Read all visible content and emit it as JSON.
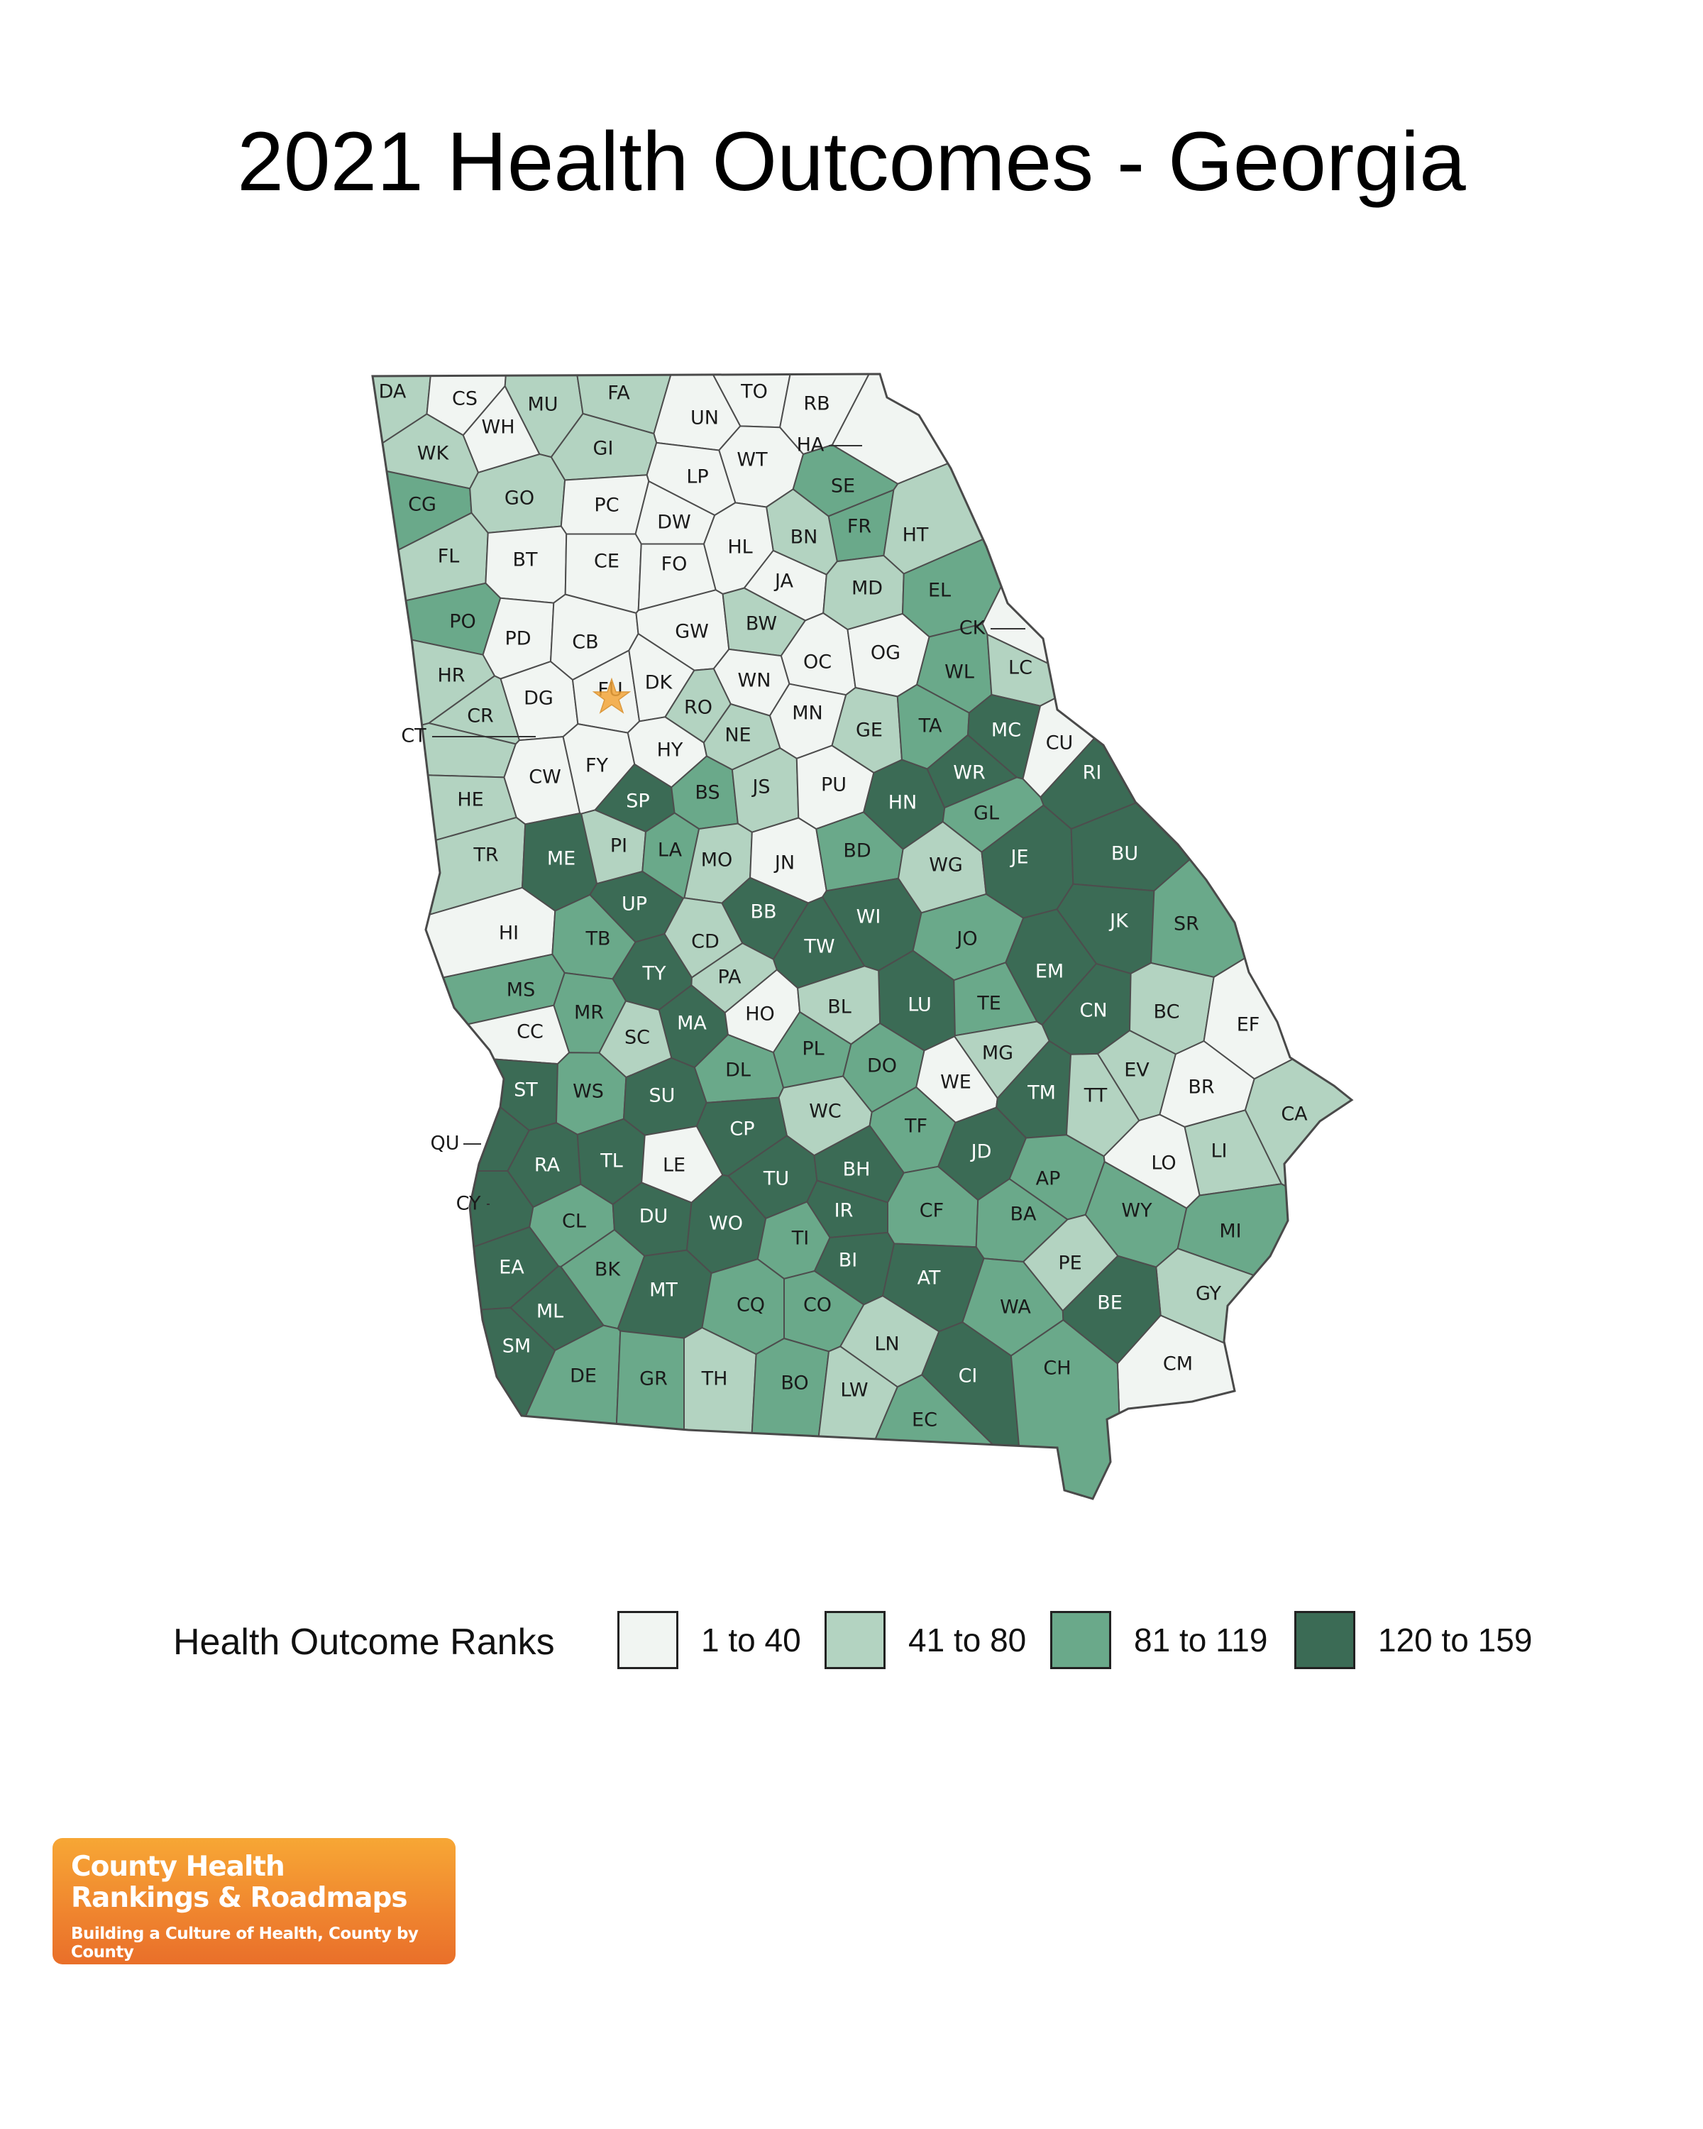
{
  "title": "2021 Health Outcomes - Georgia",
  "legend": {
    "title": "Health Outcome Ranks",
    "bins": [
      {
        "label": "1 to 40",
        "color": "#f1f5f2"
      },
      {
        "label": "41 to 80",
        "color": "#b3d3c1"
      },
      {
        "label": "81 to 119",
        "color": "#6aa98a"
      },
      {
        "label": "120 to 159",
        "color": "#3b6b55"
      }
    ]
  },
  "logo": {
    "line1": "County Health",
    "line2": "Rankings & Roadmaps",
    "tagline": "Building a Culture of Health, County by County"
  },
  "map": {
    "state": "Georgia",
    "highlight_marker": "FU",
    "counties": [
      {
        "abbr": "DA",
        "bin": 2
      },
      {
        "abbr": "CS",
        "bin": 1
      },
      {
        "abbr": "WH",
        "bin": 1
      },
      {
        "abbr": "MU",
        "bin": 2
      },
      {
        "abbr": "FA",
        "bin": 2
      },
      {
        "abbr": "UN",
        "bin": 1
      },
      {
        "abbr": "TO",
        "bin": 1
      },
      {
        "abbr": "RB",
        "bin": 1
      },
      {
        "abbr": "WK",
        "bin": 2
      },
      {
        "abbr": "GI",
        "bin": 2
      },
      {
        "abbr": "HA",
        "bin": 1
      },
      {
        "abbr": "WT",
        "bin": 1
      },
      {
        "abbr": "LP",
        "bin": 1
      },
      {
        "abbr": "SE",
        "bin": 3
      },
      {
        "abbr": "CG",
        "bin": 3
      },
      {
        "abbr": "GO",
        "bin": 2
      },
      {
        "abbr": "PC",
        "bin": 1
      },
      {
        "abbr": "DW",
        "bin": 1
      },
      {
        "abbr": "FR",
        "bin": 3
      },
      {
        "abbr": "HT",
        "bin": 2
      },
      {
        "abbr": "BN",
        "bin": 2
      },
      {
        "abbr": "FL",
        "bin": 2
      },
      {
        "abbr": "BT",
        "bin": 1
      },
      {
        "abbr": "CE",
        "bin": 1
      },
      {
        "abbr": "FO",
        "bin": 1
      },
      {
        "abbr": "HL",
        "bin": 1
      },
      {
        "abbr": "JA",
        "bin": 1
      },
      {
        "abbr": "MD",
        "bin": 2
      },
      {
        "abbr": "EL",
        "bin": 3
      },
      {
        "abbr": "CK",
        "bin": 1
      },
      {
        "abbr": "PO",
        "bin": 3
      },
      {
        "abbr": "PD",
        "bin": 1
      },
      {
        "abbr": "CB",
        "bin": 1
      },
      {
        "abbr": "GW",
        "bin": 1
      },
      {
        "abbr": "BW",
        "bin": 2
      },
      {
        "abbr": "OC",
        "bin": 1
      },
      {
        "abbr": "OG",
        "bin": 1
      },
      {
        "abbr": "WL",
        "bin": 3
      },
      {
        "abbr": "LC",
        "bin": 2
      },
      {
        "abbr": "HR",
        "bin": 2
      },
      {
        "abbr": "DG",
        "bin": 1
      },
      {
        "abbr": "FU",
        "bin": 1
      },
      {
        "abbr": "DK",
        "bin": 1
      },
      {
        "abbr": "WN",
        "bin": 1
      },
      {
        "abbr": "RO",
        "bin": 2
      },
      {
        "abbr": "MN",
        "bin": 1
      },
      {
        "abbr": "CR",
        "bin": 2
      },
      {
        "abbr": "CT",
        "bin": 2
      },
      {
        "abbr": "NE",
        "bin": 2
      },
      {
        "abbr": "GE",
        "bin": 2
      },
      {
        "abbr": "TA",
        "bin": 3
      },
      {
        "abbr": "MC",
        "bin": 4
      },
      {
        "abbr": "CU",
        "bin": 1
      },
      {
        "abbr": "HY",
        "bin": 1
      },
      {
        "abbr": "CW",
        "bin": 1
      },
      {
        "abbr": "FY",
        "bin": 1
      },
      {
        "abbr": "HE",
        "bin": 2
      },
      {
        "abbr": "SP",
        "bin": 4
      },
      {
        "abbr": "BS",
        "bin": 3
      },
      {
        "abbr": "JS",
        "bin": 2
      },
      {
        "abbr": "PU",
        "bin": 1
      },
      {
        "abbr": "HN",
        "bin": 4
      },
      {
        "abbr": "WR",
        "bin": 4
      },
      {
        "abbr": "RI",
        "bin": 4
      },
      {
        "abbr": "GL",
        "bin": 3
      },
      {
        "abbr": "TR",
        "bin": 2
      },
      {
        "abbr": "ME",
        "bin": 4
      },
      {
        "abbr": "PI",
        "bin": 2
      },
      {
        "abbr": "LA",
        "bin": 3
      },
      {
        "abbr": "MO",
        "bin": 2
      },
      {
        "abbr": "JN",
        "bin": 1
      },
      {
        "abbr": "BD",
        "bin": 3
      },
      {
        "abbr": "WG",
        "bin": 2
      },
      {
        "abbr": "JE",
        "bin": 4
      },
      {
        "abbr": "BU",
        "bin": 4
      },
      {
        "abbr": "UP",
        "bin": 4
      },
      {
        "abbr": "BB",
        "bin": 4
      },
      {
        "abbr": "WI",
        "bin": 4
      },
      {
        "abbr": "JK",
        "bin": 4
      },
      {
        "abbr": "SR",
        "bin": 3
      },
      {
        "abbr": "HI",
        "bin": 1
      },
      {
        "abbr": "TB",
        "bin": 3
      },
      {
        "abbr": "CD",
        "bin": 2
      },
      {
        "abbr": "TW",
        "bin": 4
      },
      {
        "abbr": "JO",
        "bin": 3
      },
      {
        "abbr": "EM",
        "bin": 4
      },
      {
        "abbr": "TY",
        "bin": 4
      },
      {
        "abbr": "PA",
        "bin": 2
      },
      {
        "abbr": "LU",
        "bin": 4
      },
      {
        "abbr": "MS",
        "bin": 3
      },
      {
        "abbr": "MR",
        "bin": 3
      },
      {
        "abbr": "MA",
        "bin": 4
      },
      {
        "abbr": "HO",
        "bin": 1
      },
      {
        "abbr": "BL",
        "bin": 2
      },
      {
        "abbr": "TE",
        "bin": 3
      },
      {
        "abbr": "CN",
        "bin": 4
      },
      {
        "abbr": "BC",
        "bin": 2
      },
      {
        "abbr": "EF",
        "bin": 1
      },
      {
        "abbr": "CC",
        "bin": 1
      },
      {
        "abbr": "SC",
        "bin": 2
      },
      {
        "abbr": "PL",
        "bin": 3
      },
      {
        "abbr": "DO",
        "bin": 3
      },
      {
        "abbr": "MG",
        "bin": 2
      },
      {
        "abbr": "DL",
        "bin": 3
      },
      {
        "abbr": "EV",
        "bin": 2
      },
      {
        "abbr": "ST",
        "bin": 4
      },
      {
        "abbr": "WS",
        "bin": 3
      },
      {
        "abbr": "SU",
        "bin": 4
      },
      {
        "abbr": "WE",
        "bin": 1
      },
      {
        "abbr": "TM",
        "bin": 4
      },
      {
        "abbr": "TT",
        "bin": 2
      },
      {
        "abbr": "BR",
        "bin": 1
      },
      {
        "abbr": "WC",
        "bin": 2
      },
      {
        "abbr": "CA",
        "bin": 2
      },
      {
        "abbr": "QU",
        "bin": 4
      },
      {
        "abbr": "CP",
        "bin": 4
      },
      {
        "abbr": "TF",
        "bin": 3
      },
      {
        "abbr": "JD",
        "bin": 4
      },
      {
        "abbr": "LI",
        "bin": 2
      },
      {
        "abbr": "LO",
        "bin": 1
      },
      {
        "abbr": "RA",
        "bin": 4
      },
      {
        "abbr": "TL",
        "bin": 4
      },
      {
        "abbr": "LE",
        "bin": 1
      },
      {
        "abbr": "TU",
        "bin": 4
      },
      {
        "abbr": "BH",
        "bin": 4
      },
      {
        "abbr": "AP",
        "bin": 3
      },
      {
        "abbr": "CY",
        "bin": 4
      },
      {
        "abbr": "IR",
        "bin": 4
      },
      {
        "abbr": "CF",
        "bin": 3
      },
      {
        "abbr": "BA",
        "bin": 3
      },
      {
        "abbr": "WY",
        "bin": 3
      },
      {
        "abbr": "CL",
        "bin": 3
      },
      {
        "abbr": "DU",
        "bin": 4
      },
      {
        "abbr": "WO",
        "bin": 4
      },
      {
        "abbr": "MI",
        "bin": 3
      },
      {
        "abbr": "TI",
        "bin": 3
      },
      {
        "abbr": "BI",
        "bin": 4
      },
      {
        "abbr": "PE",
        "bin": 2
      },
      {
        "abbr": "EA",
        "bin": 4
      },
      {
        "abbr": "BK",
        "bin": 3
      },
      {
        "abbr": "AT",
        "bin": 4
      },
      {
        "abbr": "MT",
        "bin": 4
      },
      {
        "abbr": "GY",
        "bin": 2
      },
      {
        "abbr": "CQ",
        "bin": 3
      },
      {
        "abbr": "CO",
        "bin": 3
      },
      {
        "abbr": "WA",
        "bin": 3
      },
      {
        "abbr": "BE",
        "bin": 4
      },
      {
        "abbr": "ML",
        "bin": 4
      },
      {
        "abbr": "LN",
        "bin": 2
      },
      {
        "abbr": "SM",
        "bin": 4
      },
      {
        "abbr": "CM",
        "bin": 1
      },
      {
        "abbr": "DE",
        "bin": 3
      },
      {
        "abbr": "GR",
        "bin": 3
      },
      {
        "abbr": "TH",
        "bin": 2
      },
      {
        "abbr": "BO",
        "bin": 3
      },
      {
        "abbr": "LW",
        "bin": 2
      },
      {
        "abbr": "CI",
        "bin": 4
      },
      {
        "abbr": "CH",
        "bin": 3
      },
      {
        "abbr": "EC",
        "bin": 3
      }
    ]
  }
}
